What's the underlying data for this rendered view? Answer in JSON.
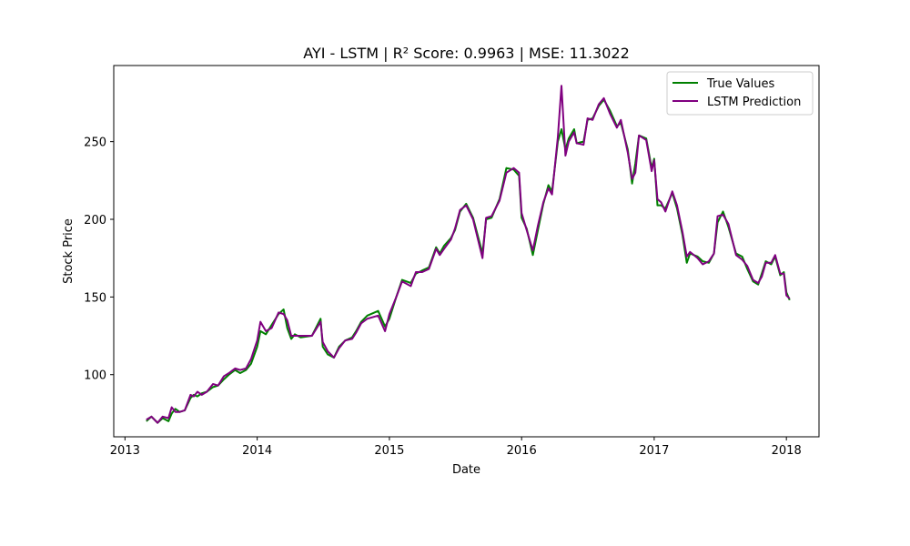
{
  "chart_data": {
    "type": "line",
    "title": "AYI - LSTM | R² Score: 0.9963 | MSE: 11.3022",
    "xlabel": "Date",
    "ylabel": "Stock Price",
    "xlim": [
      "2012-12-01",
      "2018-04-01"
    ],
    "ylim": [
      60,
      299
    ],
    "x_ticks": [
      "2013",
      "2014",
      "2015",
      "2016",
      "2017",
      "2018"
    ],
    "y_ticks": [
      "100",
      "150",
      "200",
      "250"
    ],
    "y_tick_values": [
      100,
      150,
      200,
      250
    ],
    "grid": false,
    "legend_position": "upper right",
    "series": [
      {
        "name": "True Values",
        "color": "#008000",
        "points": [
          [
            "2013-03-01",
            70
          ],
          [
            "2013-03-15",
            73
          ],
          [
            "2013-04-01",
            69
          ],
          [
            "2013-04-15",
            72
          ],
          [
            "2013-05-01",
            70
          ],
          [
            "2013-05-10",
            75
          ],
          [
            "2013-05-20",
            78
          ],
          [
            "2013-06-01",
            76
          ],
          [
            "2013-06-15",
            77
          ],
          [
            "2013-07-01",
            85
          ],
          [
            "2013-07-10",
            87
          ],
          [
            "2013-07-20",
            86
          ],
          [
            "2013-08-01",
            88
          ],
          [
            "2013-08-15",
            89
          ],
          [
            "2013-09-01",
            92
          ],
          [
            "2013-09-15",
            93
          ],
          [
            "2013-10-01",
            97
          ],
          [
            "2013-10-15",
            100
          ],
          [
            "2013-11-01",
            103
          ],
          [
            "2013-11-15",
            101
          ],
          [
            "2013-12-01",
            103
          ],
          [
            "2013-12-15",
            107
          ],
          [
            "2014-01-01",
            118
          ],
          [
            "2014-01-10",
            128
          ],
          [
            "2014-01-25",
            126
          ],
          [
            "2014-02-10",
            132
          ],
          [
            "2014-03-01",
            139
          ],
          [
            "2014-03-15",
            142
          ],
          [
            "2014-03-25",
            130
          ],
          [
            "2014-04-05",
            123
          ],
          [
            "2014-04-15",
            126
          ],
          [
            "2014-05-01",
            124
          ],
          [
            "2014-06-01",
            125
          ],
          [
            "2014-06-25",
            136
          ],
          [
            "2014-07-01",
            118
          ],
          [
            "2014-07-15",
            113
          ],
          [
            "2014-08-01",
            111
          ],
          [
            "2014-08-15",
            118
          ],
          [
            "2014-09-01",
            122
          ],
          [
            "2014-09-20",
            124
          ],
          [
            "2014-10-01",
            128
          ],
          [
            "2014-10-15",
            134
          ],
          [
            "2014-11-01",
            138
          ],
          [
            "2014-12-01",
            141
          ],
          [
            "2014-12-20",
            131
          ],
          [
            "2015-01-01",
            136
          ],
          [
            "2015-01-20",
            150
          ],
          [
            "2015-02-05",
            161
          ],
          [
            "2015-03-01",
            159
          ],
          [
            "2015-03-15",
            165
          ],
          [
            "2015-04-01",
            167
          ],
          [
            "2015-04-20",
            169
          ],
          [
            "2015-05-10",
            182
          ],
          [
            "2015-05-20",
            178
          ],
          [
            "2015-06-01",
            183
          ],
          [
            "2015-06-20",
            188
          ],
          [
            "2015-07-01",
            193
          ],
          [
            "2015-07-15",
            205
          ],
          [
            "2015-08-01",
            210
          ],
          [
            "2015-08-20",
            201
          ],
          [
            "2015-09-15",
            178
          ],
          [
            "2015-09-25",
            200
          ],
          [
            "2015-10-10",
            201
          ],
          [
            "2015-11-01",
            213
          ],
          [
            "2015-11-20",
            233
          ],
          [
            "2015-12-10",
            232
          ],
          [
            "2015-12-25",
            228
          ],
          [
            "2016-01-01",
            201
          ],
          [
            "2016-01-15",
            194
          ],
          [
            "2016-02-01",
            177
          ],
          [
            "2016-02-15",
            193
          ],
          [
            "2016-03-01",
            210
          ],
          [
            "2016-03-15",
            222
          ],
          [
            "2016-03-25",
            218
          ],
          [
            "2016-04-10",
            250
          ],
          [
            "2016-04-20",
            258
          ],
          [
            "2016-05-01",
            245
          ],
          [
            "2016-05-10",
            252
          ],
          [
            "2016-05-25",
            258
          ],
          [
            "2016-06-01",
            249
          ],
          [
            "2016-06-20",
            250
          ],
          [
            "2016-07-01",
            264
          ],
          [
            "2016-07-15",
            265
          ],
          [
            "2016-08-01",
            273
          ],
          [
            "2016-08-15",
            277
          ],
          [
            "2016-09-01",
            270
          ],
          [
            "2016-09-20",
            260
          ],
          [
            "2016-10-01",
            262
          ],
          [
            "2016-10-20",
            245
          ],
          [
            "2016-11-01",
            223
          ],
          [
            "2016-11-10",
            236
          ],
          [
            "2016-11-20",
            254
          ],
          [
            "2016-12-10",
            252
          ],
          [
            "2016-12-25",
            233
          ],
          [
            "2017-01-01",
            239
          ],
          [
            "2017-01-10",
            209
          ],
          [
            "2017-01-20",
            209
          ],
          [
            "2017-02-01",
            207
          ],
          [
            "2017-02-20",
            217
          ],
          [
            "2017-03-05",
            207
          ],
          [
            "2017-03-20",
            190
          ],
          [
            "2017-04-01",
            172
          ],
          [
            "2017-04-10",
            178
          ],
          [
            "2017-05-01",
            176
          ],
          [
            "2017-05-15",
            173
          ],
          [
            "2017-06-01",
            172
          ],
          [
            "2017-06-15",
            178
          ],
          [
            "2017-06-25",
            198
          ],
          [
            "2017-07-10",
            205
          ],
          [
            "2017-07-25",
            195
          ],
          [
            "2017-08-15",
            178
          ],
          [
            "2017-09-01",
            176
          ],
          [
            "2017-09-15",
            168
          ],
          [
            "2017-10-01",
            160
          ],
          [
            "2017-10-15",
            158
          ],
          [
            "2017-10-25",
            165
          ],
          [
            "2017-11-05",
            173
          ],
          [
            "2017-11-20",
            171
          ],
          [
            "2017-12-01",
            176
          ],
          [
            "2017-12-15",
            164
          ],
          [
            "2017-12-25",
            166
          ],
          [
            "2018-01-01",
            153
          ],
          [
            "2018-01-10",
            148
          ]
        ]
      },
      {
        "name": "LSTM Prediction",
        "color": "#800080",
        "points": [
          [
            "2013-03-01",
            71
          ],
          [
            "2013-03-15",
            73
          ],
          [
            "2013-04-01",
            69
          ],
          [
            "2013-04-15",
            73
          ],
          [
            "2013-05-01",
            72
          ],
          [
            "2013-05-10",
            79
          ],
          [
            "2013-05-20",
            76
          ],
          [
            "2013-06-01",
            76
          ],
          [
            "2013-06-15",
            77
          ],
          [
            "2013-07-01",
            87
          ],
          [
            "2013-07-10",
            86
          ],
          [
            "2013-07-20",
            89
          ],
          [
            "2013-08-01",
            87
          ],
          [
            "2013-08-15",
            89
          ],
          [
            "2013-09-01",
            94
          ],
          [
            "2013-09-15",
            93
          ],
          [
            "2013-10-01",
            99
          ],
          [
            "2013-10-15",
            101
          ],
          [
            "2013-11-01",
            104
          ],
          [
            "2013-11-15",
            103
          ],
          [
            "2013-12-01",
            104
          ],
          [
            "2013-12-15",
            110
          ],
          [
            "2014-01-01",
            122
          ],
          [
            "2014-01-10",
            134
          ],
          [
            "2014-01-25",
            128
          ],
          [
            "2014-02-10",
            130
          ],
          [
            "2014-03-01",
            140
          ],
          [
            "2014-03-15",
            139
          ],
          [
            "2014-03-25",
            135
          ],
          [
            "2014-04-05",
            125
          ],
          [
            "2014-04-15",
            125
          ],
          [
            "2014-05-01",
            125
          ],
          [
            "2014-06-01",
            125
          ],
          [
            "2014-06-25",
            134
          ],
          [
            "2014-07-01",
            121
          ],
          [
            "2014-07-15",
            115
          ],
          [
            "2014-08-01",
            111
          ],
          [
            "2014-08-15",
            117
          ],
          [
            "2014-09-01",
            122
          ],
          [
            "2014-09-20",
            123
          ],
          [
            "2014-10-01",
            127
          ],
          [
            "2014-10-15",
            133
          ],
          [
            "2014-11-01",
            136
          ],
          [
            "2014-12-01",
            138
          ],
          [
            "2014-12-20",
            128
          ],
          [
            "2015-01-01",
            139
          ],
          [
            "2015-01-20",
            150
          ],
          [
            "2015-02-05",
            160
          ],
          [
            "2015-03-01",
            157
          ],
          [
            "2015-03-15",
            166
          ],
          [
            "2015-04-01",
            166
          ],
          [
            "2015-04-20",
            168
          ],
          [
            "2015-05-10",
            181
          ],
          [
            "2015-05-20",
            177
          ],
          [
            "2015-06-01",
            181
          ],
          [
            "2015-06-20",
            187
          ],
          [
            "2015-07-01",
            194
          ],
          [
            "2015-07-15",
            206
          ],
          [
            "2015-08-01",
            209
          ],
          [
            "2015-08-20",
            200
          ],
          [
            "2015-09-15",
            175
          ],
          [
            "2015-09-25",
            201
          ],
          [
            "2015-10-10",
            202
          ],
          [
            "2015-11-01",
            212
          ],
          [
            "2015-11-20",
            230
          ],
          [
            "2015-12-10",
            233
          ],
          [
            "2015-12-25",
            230
          ],
          [
            "2016-01-01",
            204
          ],
          [
            "2016-01-15",
            193
          ],
          [
            "2016-02-01",
            180
          ],
          [
            "2016-02-15",
            196
          ],
          [
            "2016-03-01",
            211
          ],
          [
            "2016-03-15",
            220
          ],
          [
            "2016-03-25",
            216
          ],
          [
            "2016-04-10",
            253
          ],
          [
            "2016-04-20",
            286
          ],
          [
            "2016-05-01",
            241
          ],
          [
            "2016-05-10",
            250
          ],
          [
            "2016-05-25",
            256
          ],
          [
            "2016-06-01",
            249
          ],
          [
            "2016-06-20",
            248
          ],
          [
            "2016-07-01",
            265
          ],
          [
            "2016-07-15",
            264
          ],
          [
            "2016-08-01",
            274
          ],
          [
            "2016-08-15",
            278
          ],
          [
            "2016-09-01",
            268
          ],
          [
            "2016-09-20",
            259
          ],
          [
            "2016-10-01",
            264
          ],
          [
            "2016-10-20",
            243
          ],
          [
            "2016-11-01",
            226
          ],
          [
            "2016-11-10",
            230
          ],
          [
            "2016-11-20",
            254
          ],
          [
            "2016-12-10",
            251
          ],
          [
            "2016-12-25",
            231
          ],
          [
            "2017-01-01",
            238
          ],
          [
            "2017-01-10",
            213
          ],
          [
            "2017-01-20",
            211
          ],
          [
            "2017-02-01",
            205
          ],
          [
            "2017-02-20",
            218
          ],
          [
            "2017-03-05",
            209
          ],
          [
            "2017-03-20",
            192
          ],
          [
            "2017-04-01",
            176
          ],
          [
            "2017-04-10",
            179
          ],
          [
            "2017-05-01",
            175
          ],
          [
            "2017-05-15",
            171
          ],
          [
            "2017-06-01",
            173
          ],
          [
            "2017-06-15",
            178
          ],
          [
            "2017-06-25",
            202
          ],
          [
            "2017-07-10",
            203
          ],
          [
            "2017-07-25",
            197
          ],
          [
            "2017-08-15",
            177
          ],
          [
            "2017-09-01",
            174
          ],
          [
            "2017-09-15",
            170
          ],
          [
            "2017-10-01",
            161
          ],
          [
            "2017-10-15",
            159
          ],
          [
            "2017-10-25",
            163
          ],
          [
            "2017-11-05",
            172
          ],
          [
            "2017-11-20",
            172
          ],
          [
            "2017-12-01",
            177
          ],
          [
            "2017-12-15",
            165
          ],
          [
            "2017-12-25",
            165
          ],
          [
            "2018-01-01",
            151
          ],
          [
            "2018-01-10",
            149
          ]
        ]
      }
    ]
  }
}
